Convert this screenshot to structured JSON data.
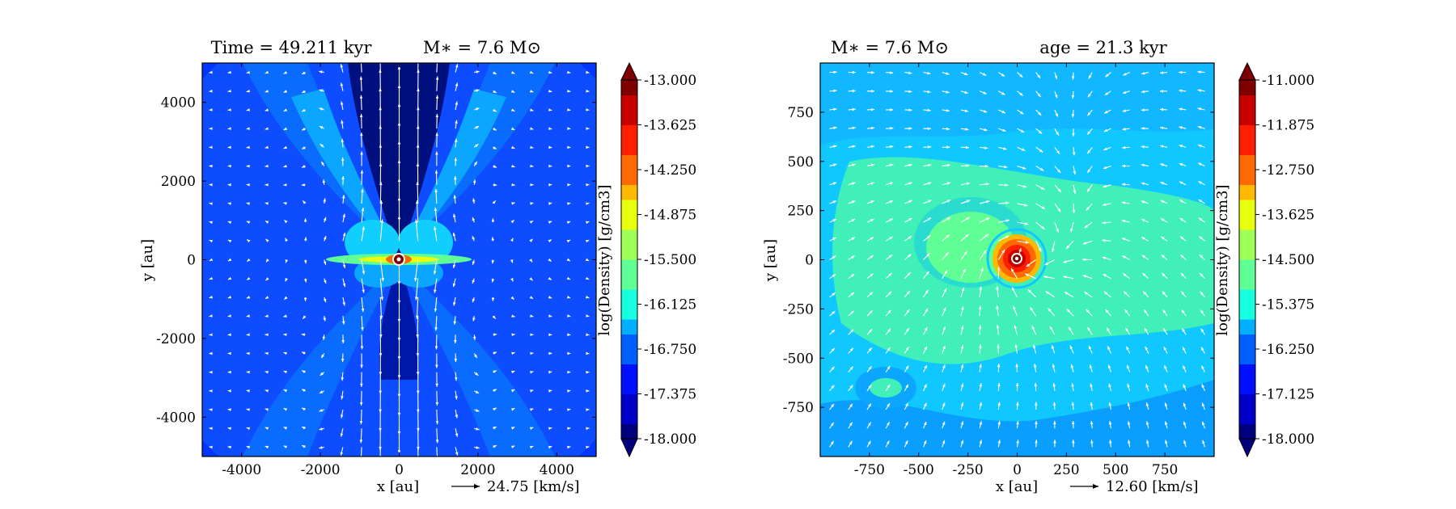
{
  "colors": {
    "jet": [
      "#00007f",
      "#0000c8",
      "#0010ff",
      "#0060ff",
      "#00b0ff",
      "#16ffe0",
      "#60ff96",
      "#a0ff56",
      "#e8ff0e",
      "#ffb900",
      "#ff6a00",
      "#ff1e00",
      "#c80000",
      "#7f0000"
    ],
    "arrow": "#ffffff"
  },
  "chart_data": [
    {
      "type": "heatmap",
      "title": {
        "left": "Time = 49.211 kyr",
        "right": "M∗ = 7.6 M⊙"
      },
      "xlabel": "x [au]",
      "ylabel": "y [au]",
      "xlim": [
        -5000,
        5000
      ],
      "ylim": [
        -5000,
        5000
      ],
      "xticks": [
        "-4000",
        "-2000",
        "0",
        "2000",
        "4000"
      ],
      "xtick_values": [
        -4000,
        -2000,
        0,
        2000,
        4000
      ],
      "yticks": [
        "4000",
        "2000",
        "0",
        "-2000",
        "-4000"
      ],
      "ytick_values": [
        4000,
        2000,
        0,
        -2000,
        -4000
      ],
      "colorbar": {
        "label": "log(Density) [g/cm3]",
        "range": [
          -18.0,
          -13.0
        ],
        "ticks": [
          "-13.000",
          "-13.625",
          "-14.250",
          "-14.875",
          "-15.500",
          "-16.125",
          "-16.750",
          "-17.375",
          "-18.000"
        ],
        "extend": "both"
      },
      "velocity_reference": {
        "text": "24.75 [km/s]"
      },
      "field": "bipolar-outflow",
      "star_position": [
        0,
        0
      ]
    },
    {
      "type": "heatmap",
      "title": {
        "left": "M∗ = 7.6 M⊙",
        "right": "age = 21.3 kyr"
      },
      "xlabel": "x [au]",
      "ylabel": "y [au]",
      "xlim": [
        -1000,
        1000
      ],
      "ylim": [
        -1000,
        1000
      ],
      "xticks": [
        "-750",
        "-500",
        "-250",
        "0",
        "250",
        "500",
        "750"
      ],
      "xtick_values": [
        -750,
        -500,
        -250,
        0,
        250,
        500,
        750
      ],
      "yticks": [
        "750",
        "500",
        "250",
        "0",
        "-250",
        "-500",
        "-750"
      ],
      "ytick_values": [
        750,
        500,
        250,
        0,
        -250,
        -500,
        -750
      ],
      "colorbar": {
        "label": "log(Density) [g/cm3]",
        "range": [
          -18.0,
          -11.0
        ],
        "ticks": [
          "-11.000",
          "-11.875",
          "-12.750",
          "-13.625",
          "-14.500",
          "-15.375",
          "-16.250",
          "-17.125",
          "-18.000"
        ],
        "extend": "both"
      },
      "velocity_reference": {
        "text": "12.60 [km/s]"
      },
      "field": "disk-core",
      "star_position": [
        0,
        0
      ]
    }
  ]
}
